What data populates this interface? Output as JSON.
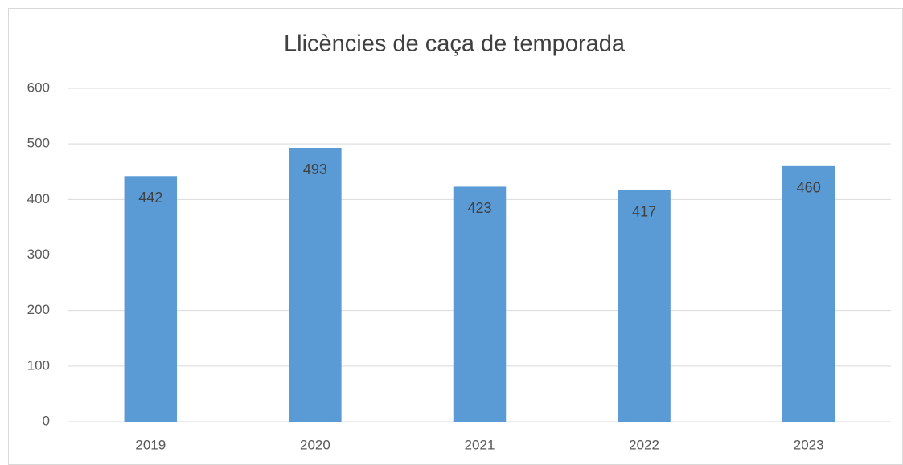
{
  "chart_data": {
    "type": "bar",
    "title": "Llicències de caça de temporada",
    "categories": [
      "2019",
      "2020",
      "2021",
      "2022",
      "2023"
    ],
    "values": [
      442,
      493,
      423,
      417,
      460
    ],
    "color": "#5b9bd5",
    "ylim": [
      0,
      600
    ],
    "yticks": [
      0,
      100,
      200,
      300,
      400,
      500,
      600
    ],
    "grid": true
  }
}
